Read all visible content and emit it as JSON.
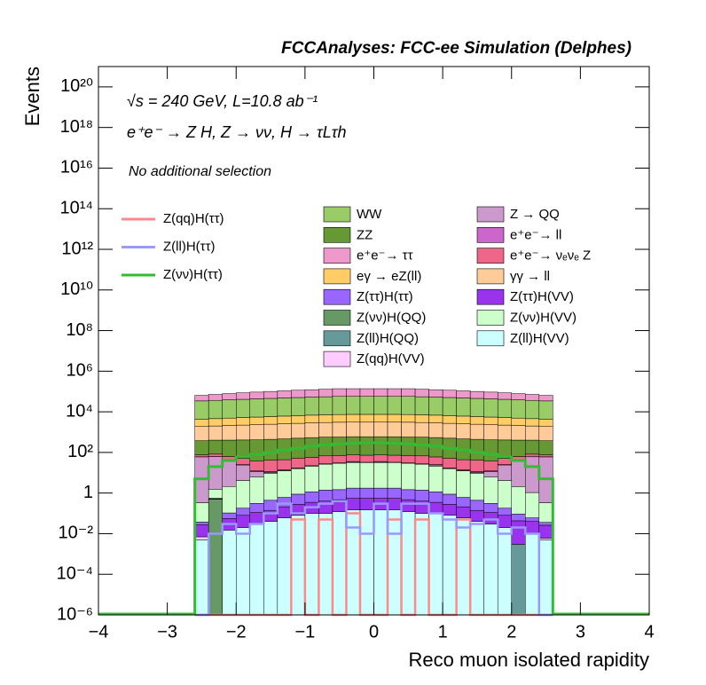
{
  "chart_data": {
    "type": "stacked-histogram",
    "title": "FCCAnalyses: FCC-ee Simulation (Delphes)",
    "annotations": [
      "√s = 240 GeV, L=10.8 ab⁻¹",
      "e⁺e⁻ → Z H, Z → νν, H → τLτh",
      "No additional selection"
    ],
    "x_label": "Reco muon isolated rapidity",
    "y_label": "Events",
    "log_y": true,
    "xlim": [
      -4,
      4
    ],
    "ylim": [
      1e-06,
      1e+21
    ],
    "xticks": [
      {
        "value": -4,
        "label": "−4"
      },
      {
        "value": -3,
        "label": "−3"
      },
      {
        "value": -2,
        "label": "−2"
      },
      {
        "value": -1,
        "label": "−1"
      },
      0,
      1,
      2,
      3,
      4
    ],
    "yticks": [
      {
        "value": 1e-06,
        "label": "10⁻⁶"
      },
      {
        "value": 0.0001,
        "label": "10⁻⁴"
      },
      {
        "value": 0.01,
        "label": "10⁻²"
      },
      1,
      {
        "value": 100,
        "label": "10²"
      },
      {
        "value": 10000,
        "label": "10⁴"
      },
      {
        "value": 1000000.0,
        "label": "10⁶"
      },
      {
        "value": 100000000.0,
        "label": "10⁸"
      },
      {
        "value": 10000000000.0,
        "label": "10¹⁰"
      },
      {
        "value": 1000000000000.0,
        "label": "10¹²"
      },
      {
        "value": 100000000000000.0,
        "label": "10¹⁴"
      },
      {
        "value": 1e+16,
        "label": "10¹⁶"
      },
      {
        "value": 1e+18,
        "label": "10¹⁸"
      },
      {
        "value": 1e+20,
        "label": "10²⁰"
      }
    ],
    "bins": [
      -2.6,
      -2.4,
      -2.2,
      -2,
      -1.8,
      -1.6,
      -1.4,
      -1.2,
      -1,
      -0.8,
      -0.6,
      -0.4,
      -0.2,
      0,
      0.2,
      0.4,
      0.6,
      0.8,
      1,
      1.2,
      1.4,
      1.6,
      1.8,
      2,
      2.2,
      2.4,
      2.6
    ],
    "series": [
      {
        "name": "WW",
        "color": "#99cc66",
        "values": [
          30000,
          32000,
          34000,
          36000,
          38000,
          40000,
          42000,
          44000,
          46000,
          48000,
          50000,
          50000,
          50000,
          50000,
          50000,
          50000,
          48000,
          46000,
          44000,
          42000,
          40000,
          38000,
          36000,
          34000,
          32000,
          30000
        ]
      },
      {
        "name": "Z → QQ",
        "color": "#cc99cc",
        "values": [
          60,
          60,
          40,
          20,
          5,
          1,
          0.3,
          0.2,
          0.1,
          0.2,
          0.2,
          3,
          0.1,
          3,
          0.2,
          0.1,
          0.2,
          3,
          0.2,
          0.3,
          1,
          5,
          20,
          40,
          60,
          60
        ]
      },
      {
        "name": "ZZ",
        "color": "#669933",
        "values": [
          300,
          320,
          340,
          360,
          380,
          400,
          420,
          450,
          480,
          500,
          500,
          520,
          520,
          520,
          520,
          500,
          500,
          480,
          450,
          420,
          400,
          380,
          360,
          340,
          320,
          300
        ]
      },
      {
        "name": "e⁺e⁻→ ll",
        "color": "#cc66cc",
        "values": [
          1,
          1,
          1,
          1,
          1,
          1,
          1,
          1,
          1,
          1,
          1,
          1,
          1,
          1,
          1,
          1,
          1,
          1,
          1,
          1,
          1,
          1,
          1,
          1,
          1,
          1
        ]
      },
      {
        "name": "e⁺e⁻→ ττ",
        "color": "#ee99cc",
        "values": [
          30000,
          35000,
          40000,
          45000,
          50000,
          55000,
          60000,
          65000,
          70000,
          75000,
          80000,
          80000,
          80000,
          80000,
          80000,
          80000,
          75000,
          70000,
          65000,
          60000,
          55000,
          50000,
          45000,
          40000,
          35000,
          30000
        ]
      },
      {
        "name": "e⁺e⁻→ νₑνₑ Z",
        "color": "#ee6688",
        "values": [
          15,
          20,
          20,
          25,
          25,
          30,
          30,
          35,
          35,
          40,
          40,
          40,
          40,
          40,
          40,
          40,
          40,
          35,
          35,
          30,
          30,
          25,
          25,
          20,
          20,
          15
        ]
      },
      {
        "name": "eγ → eZ(ll)",
        "color": "#ffcc66",
        "values": [
          2500,
          2600,
          2800,
          3000,
          3200,
          3400,
          3600,
          3800,
          4000,
          4200,
          4300,
          4400,
          4400,
          4400,
          4400,
          4300,
          4200,
          4000,
          3800,
          3600,
          3400,
          3200,
          3000,
          2800,
          2600,
          2500
        ]
      },
      {
        "name": "γγ → ll",
        "color": "#ffcc99",
        "values": [
          1500,
          1600,
          1700,
          1800,
          1900,
          2000,
          2100,
          2200,
          2300,
          2400,
          2500,
          2500,
          2500,
          2500,
          2500,
          2500,
          2400,
          2300,
          2200,
          2100,
          2000,
          1900,
          1800,
          1700,
          1600,
          1500
        ]
      },
      {
        "name": "Z(ττ)H(ττ)",
        "color": "#9966ff",
        "values": [
          0.01,
          0.02,
          0.05,
          0.1,
          0.2,
          0.3,
          0.4,
          0.6,
          0.8,
          1,
          1,
          1.2,
          1.2,
          1.2,
          1.2,
          1,
          1,
          0.8,
          0.6,
          0.4,
          0.3,
          0.2,
          0.1,
          0.05,
          0.02,
          0.01
        ]
      },
      {
        "name": "Z(ττ)H(VV)",
        "color": "#9933ee",
        "values": [
          0.02,
          0.03,
          0.04,
          0.06,
          0.08,
          0.1,
          0.15,
          0.2,
          0.25,
          0.3,
          0.35,
          0.4,
          0.4,
          0.4,
          0.4,
          0.35,
          0.3,
          0.25,
          0.2,
          0.15,
          0.1,
          0.08,
          0.06,
          0.04,
          0.03,
          0.02
        ]
      },
      {
        "name": "Z(νν)H(QQ)",
        "color": "#669966",
        "values": [
          0,
          0.5,
          0,
          0,
          0,
          0,
          0,
          0,
          0,
          0,
          0,
          0,
          0,
          0,
          0,
          0,
          0,
          0,
          0,
          0,
          0,
          0,
          0,
          0,
          0,
          0
        ]
      },
      {
        "name": "Z(νν)H(VV)",
        "color": "#ccffcc",
        "values": [
          0.3,
          1,
          2,
          4,
          6,
          9,
          12,
          15,
          20,
          25,
          28,
          30,
          30,
          30,
          30,
          28,
          25,
          20,
          15,
          12,
          9,
          6,
          4,
          2,
          1,
          0.3
        ]
      },
      {
        "name": "Z(ll)H(QQ)",
        "color": "#669999",
        "values": [
          0,
          0,
          0,
          0,
          0,
          0,
          0,
          0,
          0,
          0,
          0,
          0,
          0,
          0,
          0,
          0,
          0,
          0,
          0,
          0,
          0,
          0,
          0,
          0.003,
          0,
          0
        ]
      },
      {
        "name": "Z(ll)H(VV)",
        "color": "#ccffff",
        "values": [
          0.005,
          0,
          0.015,
          0.02,
          0.03,
          0.04,
          0.06,
          0.08,
          0.1,
          0.1,
          0.12,
          0.15,
          0.15,
          0.15,
          0.15,
          0.12,
          0.1,
          0.1,
          0.08,
          0.06,
          0.04,
          0.03,
          0.02,
          0,
          0.01,
          0.005
        ]
      },
      {
        "name": "Z(qq)H(VV)",
        "color": "#ffccff",
        "values": [
          0.002,
          0,
          0,
          0,
          0,
          0,
          0,
          0.001,
          0,
          0,
          0,
          0,
          0,
          0,
          0,
          0,
          0,
          0,
          0,
          0,
          0,
          0,
          0,
          0,
          0,
          0.001
        ]
      }
    ],
    "signals": [
      {
        "name": "Z(qq)H(ττ)",
        "color": "#ff8888",
        "values": [
          0,
          0,
          0,
          0,
          0,
          0,
          0,
          0.05,
          0,
          0.05,
          0,
          0.1,
          0,
          0,
          0.05,
          0,
          0.05,
          0,
          0,
          0.05,
          0,
          0,
          0,
          0,
          0,
          0
        ]
      },
      {
        "name": "Z(ll)H(ττ)",
        "color": "#9999ff",
        "values": [
          0,
          0.01,
          0.03,
          0.01,
          0.03,
          0.1,
          0.3,
          0.1,
          0.2,
          0.3,
          0.4,
          0.02,
          0.01,
          0.3,
          0.01,
          0.3,
          0.3,
          0.1,
          0.05,
          0.02,
          0.03,
          0.05,
          0.01,
          0.02,
          0.01,
          0
        ]
      },
      {
        "name": "Z(νν)H(ττ)",
        "color": "#33bb33",
        "values": [
          5,
          20,
          40,
          60,
          80,
          100,
          130,
          160,
          200,
          230,
          260,
          280,
          300,
          300,
          280,
          260,
          230,
          200,
          160,
          130,
          100,
          80,
          60,
          40,
          20,
          5
        ]
      }
    ]
  }
}
